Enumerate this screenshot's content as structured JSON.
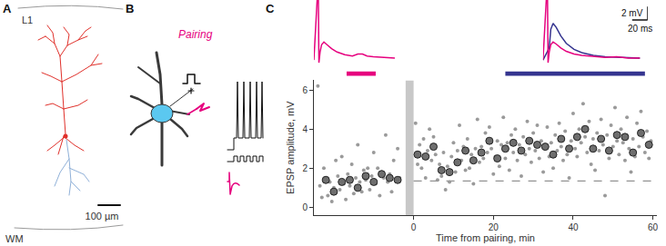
{
  "panel_labels": [
    "A",
    "B",
    "C"
  ],
  "panel_a": {
    "layer_top": "L1",
    "layer_bottom": "WM",
    "scale": "100 µm"
  },
  "panel_b": {
    "label": "Pairing"
  },
  "chart_data": {
    "type": "scatter",
    "x_label": "Time from pairing, min",
    "y_label": "EPSP amplitude, mV",
    "xlim": [
      -25,
      61
    ],
    "ylim": [
      -0.4,
      6.5
    ],
    "xticks": [
      0,
      20,
      40,
      60
    ],
    "yticks": [
      0,
      2,
      4,
      6
    ],
    "grid": false,
    "baseline": 1.35,
    "pairing_window": [
      -2,
      0
    ],
    "windows": [
      {
        "color": "#e6007e",
        "x": [
          -16.8,
          -9.5
        ]
      },
      {
        "color": "#34348f",
        "x": [
          23,
          58
        ]
      }
    ],
    "series": [
      {
        "color": "#9a9a9a",
        "marker": "dot",
        "x": [
          -24,
          -23.5,
          -23,
          -22.5,
          -22,
          -21.5,
          -21,
          -20.5,
          -20,
          -19.5,
          -19,
          -18.5,
          -18,
          -17.5,
          -17,
          -16.5,
          -16,
          -15.5,
          -15,
          -14.5,
          -14,
          -13.5,
          -13,
          -12.5,
          -12,
          -11.5,
          -11,
          -10.5,
          -10,
          -9.5,
          -9,
          -8.5,
          -8,
          -7.5,
          -7,
          -6.5,
          -6,
          -5.5,
          -5,
          -4.5,
          -4,
          -3.5,
          0.5,
          1,
          1.5,
          2,
          2.5,
          3,
          3.5,
          4,
          4.5,
          5,
          5.5,
          6,
          6.5,
          7,
          7.5,
          8,
          8.5,
          9,
          9.5,
          10,
          10.5,
          11,
          11.5,
          12,
          12.5,
          13,
          13.5,
          14,
          14.5,
          15,
          15.5,
          16,
          16.5,
          17,
          17.5,
          18,
          18.5,
          19,
          19.5,
          20,
          20.5,
          21,
          21.5,
          22,
          22.5,
          23,
          23.5,
          24,
          24.5,
          25,
          25.5,
          26,
          26.5,
          27,
          27.5,
          28,
          28.5,
          29,
          29.5,
          30,
          30.5,
          31,
          31.5,
          32,
          32.5,
          33,
          33.5,
          34,
          34.5,
          35,
          35.5,
          36,
          36.5,
          37,
          37.5,
          38,
          38.5,
          39,
          39.5,
          40,
          40.5,
          41,
          41.5,
          42,
          42.5,
          43,
          43.5,
          44,
          44.5,
          45,
          45.5,
          46,
          46.5,
          47,
          47.5,
          48,
          48.5,
          49,
          49.5,
          50,
          50.5,
          51,
          51.5,
          52,
          52.5,
          53,
          53.5,
          54,
          54.5,
          55,
          55.5,
          56,
          56.5,
          57,
          57.5,
          58,
          58.5,
          59,
          59.5
        ],
        "values": [
          6.2,
          1.1,
          0.5,
          2.0,
          1.5,
          0.6,
          1.3,
          0.3,
          1.0,
          2.4,
          1.6,
          0.9,
          2.6,
          1.2,
          0.4,
          1.7,
          1.1,
          2.2,
          0.7,
          1.5,
          3.2,
          1.3,
          0.8,
          1.9,
          1.4,
          2.0,
          0.9,
          1.6,
          2.8,
          1.2,
          2.0,
          0.6,
          1.8,
          1.5,
          3.7,
          1.3,
          1.7,
          0.8,
          2.4,
          1.4,
          3.0,
          1.5,
          4.3,
          2.2,
          3.2,
          2.0,
          3.5,
          1.5,
          2.9,
          4.0,
          2.4,
          3.6,
          2.7,
          1.4,
          2.2,
          1.6,
          2.8,
          0.9,
          2.1,
          1.3,
          2.6,
          3.3,
          1.8,
          2.9,
          4.2,
          2.4,
          3.1,
          1.9,
          3.5,
          2.0,
          2.7,
          1.2,
          3.0,
          4.5,
          2.3,
          3.1,
          2.5,
          3.8,
          2.8,
          4.1,
          3.0,
          1.7,
          2.6,
          3.4,
          2.1,
          3.2,
          4.6,
          2.5,
          3.3,
          1.9,
          3.7,
          2.8,
          4.0,
          2.4,
          3.2,
          1.6,
          3.6,
          2.7,
          4.4,
          3.0,
          2.3,
          3.8,
          2.9,
          4.2,
          2.5,
          3.4,
          1.8,
          3.0,
          4.1,
          2.6,
          3.3,
          2.0,
          3.7,
          2.9,
          4.3,
          3.1,
          2.4,
          3.9,
          2.7,
          1.5,
          3.4,
          4.8,
          3.0,
          2.6,
          4.0,
          3.3,
          5.3,
          3.6,
          2.8,
          4.4,
          2.2,
          3.5,
          1.9,
          3.8,
          2.9,
          4.5,
          3.2,
          0.6,
          3.7,
          2.5,
          4.2,
          3.1,
          5.1,
          3.4,
          2.7,
          4.0,
          3.3,
          2.4,
          4.6,
          3.0,
          1.8,
          3.5,
          2.6,
          4.3,
          3.1,
          4.9,
          3.6,
          2.8,
          3.9,
          2.5,
          3.4
        ]
      },
      {
        "color": "#6e6e6e",
        "marker": "circle",
        "x": [
          -22,
          -20,
          -18,
          -16,
          -14,
          -12,
          -10,
          -8,
          -6,
          -4,
          1,
          3,
          5,
          7,
          9,
          11,
          13,
          15,
          17,
          19,
          21,
          23,
          25,
          27,
          29,
          31,
          33,
          35,
          37,
          39,
          41,
          43,
          45,
          47,
          49,
          51,
          53,
          55,
          57,
          59
        ],
        "values": [
          1.4,
          0.8,
          1.3,
          1.4,
          1.0,
          1.6,
          1.3,
          1.7,
          1.5,
          1.4,
          2.7,
          2.6,
          3.1,
          1.9,
          1.8,
          2.3,
          2.9,
          2.4,
          2.8,
          3.4,
          2.5,
          3.0,
          3.3,
          2.9,
          3.4,
          3.2,
          3.1,
          2.7,
          3.5,
          3.0,
          3.6,
          4.0,
          3.0,
          3.5,
          2.9,
          3.7,
          3.6,
          2.8,
          3.8,
          3.2
        ]
      }
    ],
    "insets": [
      {
        "xlim": [
          -5,
          100
        ],
        "ylim": [
          -1,
          9
        ],
        "series": [
          {
            "color": "#e6007e",
            "x": [
              -5,
              0,
              0.6,
              1.5,
              3,
              5,
              8,
              12,
              18,
              25,
              35,
              45,
              52,
              58,
              64,
              72,
              85,
              100
            ],
            "values": [
              0,
              12,
              12,
              -0.4,
              1.2,
              2.3,
              2.7,
              2.3,
              1.7,
              1.2,
              0.8,
              0.6,
              0.9,
              0.9,
              0.6,
              0.5,
              0.4,
              0.3
            ]
          }
        ]
      },
      {
        "xlim": [
          -5,
          130
        ],
        "ylim": [
          -1,
          9
        ],
        "series": [
          {
            "color": "#34348f",
            "x": [
              -5,
              3,
              5,
              8,
              12,
              18,
              25,
              35,
              45,
              60,
              75,
              90,
              105,
              120
            ],
            "values": [
              0,
              1.8,
              4.6,
              5.5,
              4.9,
              3.6,
              2.5,
              1.6,
              1.1,
              0.7,
              0.5,
              0.4,
              0.3,
              0.3
            ]
          },
          {
            "color": "#e6007e",
            "x": [
              -5,
              0,
              0.6,
              1.5,
              3,
              5,
              8,
              12,
              18,
              25,
              35,
              45,
              60,
              75,
              90,
              105,
              120
            ],
            "values": [
              0,
              12,
              12,
              -0.4,
              1.2,
              2.3,
              2.7,
              2.4,
              1.8,
              1.3,
              0.9,
              0.7,
              0.5,
              0.4,
              0.5,
              0.3,
              0.3
            ]
          }
        ],
        "scale_bar": {
          "v": 2,
          "t": 20,
          "v_label": "2 mV",
          "t_label": "20 ms"
        }
      }
    ]
  }
}
